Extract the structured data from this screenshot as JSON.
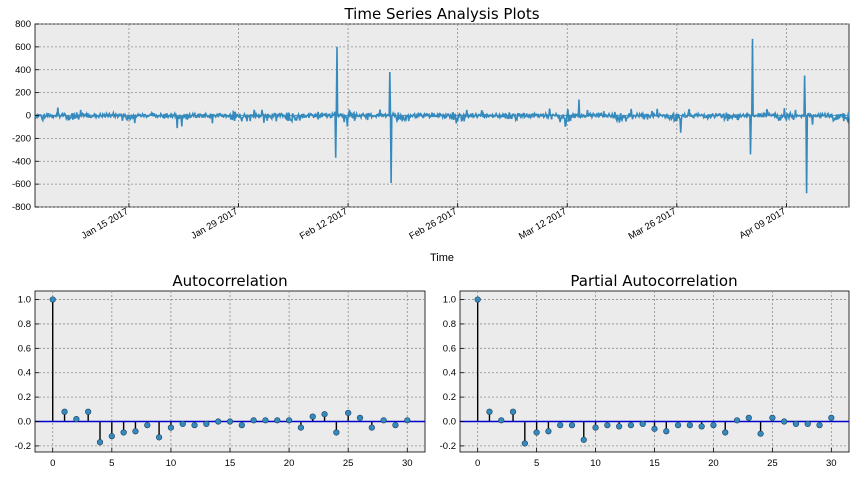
{
  "figure": {
    "background": "#ffffff",
    "axes_facecolor": "#ebebeb",
    "grid": true
  },
  "chart_data": [
    {
      "type": "line",
      "title": "Time Series Analysis Plots",
      "xlabel": "Time",
      "ylabel": "",
      "ylim": [
        -800,
        800
      ],
      "yticks": [
        -800,
        -600,
        -400,
        -200,
        0,
        200,
        400,
        600,
        800
      ],
      "xlim": [
        "2017-01-03",
        "2017-04-17"
      ],
      "xticks": [
        "2017-01-15",
        "2017-01-29",
        "2017-02-12",
        "2017-02-26",
        "2017-03-12",
        "2017-03-26",
        "2017-04-09"
      ],
      "xticklabels": [
        "Jan 15 2017",
        "Jan 29 2017",
        "Feb 12 2017",
        "Feb 26 2017",
        "Mar 12 2017",
        "Mar 26 2017",
        "Apr 09 2017"
      ],
      "color": "#348abd",
      "baseline_amplitude": 30,
      "weekly_dips": -60,
      "x": [
        "2017-02-10T10:00",
        "2017-02-10T14:00",
        "2017-02-17T08:00",
        "2017-02-17T12:00",
        "2017-03-13T12:00",
        "2017-03-26T12:00",
        "2017-04-04T10:00",
        "2017-04-04T16:00",
        "2017-04-11T08:00",
        "2017-04-11T14:00"
      ],
      "y": [
        -370,
        600,
        380,
        -590,
        140,
        -150,
        -340,
        670,
        350,
        -680
      ]
    },
    {
      "type": "stem",
      "title": "Autocorrelation",
      "xlim": [
        -1.5,
        31.5
      ],
      "ylim": [
        -0.25,
        1.07
      ],
      "xticks": [
        0,
        5,
        10,
        15,
        20,
        25,
        30
      ],
      "yticks": [
        -0.2,
        0.0,
        0.2,
        0.4,
        0.6,
        0.8,
        1.0
      ],
      "marker_color": "#348abd",
      "x": [
        0,
        1,
        2,
        3,
        4,
        5,
        6,
        7,
        8,
        9,
        10,
        11,
        12,
        13,
        14,
        15,
        16,
        17,
        18,
        19,
        20,
        21,
        22,
        23,
        24,
        25,
        26,
        27,
        28,
        29,
        30
      ],
      "y": [
        1.0,
        0.08,
        0.02,
        0.08,
        -0.17,
        -0.12,
        -0.09,
        -0.08,
        -0.03,
        -0.13,
        -0.05,
        -0.02,
        -0.03,
        -0.02,
        0.0,
        0.0,
        -0.03,
        0.01,
        0.01,
        0.01,
        0.01,
        -0.05,
        0.04,
        0.06,
        -0.09,
        0.07,
        0.03,
        -0.05,
        0.01,
        -0.03,
        0.01
      ]
    },
    {
      "type": "stem",
      "title": "Partial Autocorrelation",
      "xlim": [
        -1.5,
        31.5
      ],
      "ylim": [
        -0.25,
        1.07
      ],
      "xticks": [
        0,
        5,
        10,
        15,
        20,
        25,
        30
      ],
      "yticks": [
        -0.2,
        0.0,
        0.2,
        0.4,
        0.6,
        0.8,
        1.0
      ],
      "marker_color": "#348abd",
      "x": [
        0,
        1,
        2,
        3,
        4,
        5,
        6,
        7,
        8,
        9,
        10,
        11,
        12,
        13,
        14,
        15,
        16,
        17,
        18,
        19,
        20,
        21,
        22,
        23,
        24,
        25,
        26,
        27,
        28,
        29,
        30
      ],
      "y": [
        1.0,
        0.08,
        0.01,
        0.08,
        -0.18,
        -0.09,
        -0.08,
        -0.03,
        -0.03,
        -0.15,
        -0.05,
        -0.03,
        -0.04,
        -0.03,
        -0.02,
        -0.06,
        -0.08,
        -0.03,
        -0.03,
        -0.04,
        -0.03,
        -0.09,
        0.01,
        0.03,
        -0.1,
        0.03,
        0.0,
        -0.02,
        -0.02,
        -0.03,
        0.03
      ]
    }
  ]
}
